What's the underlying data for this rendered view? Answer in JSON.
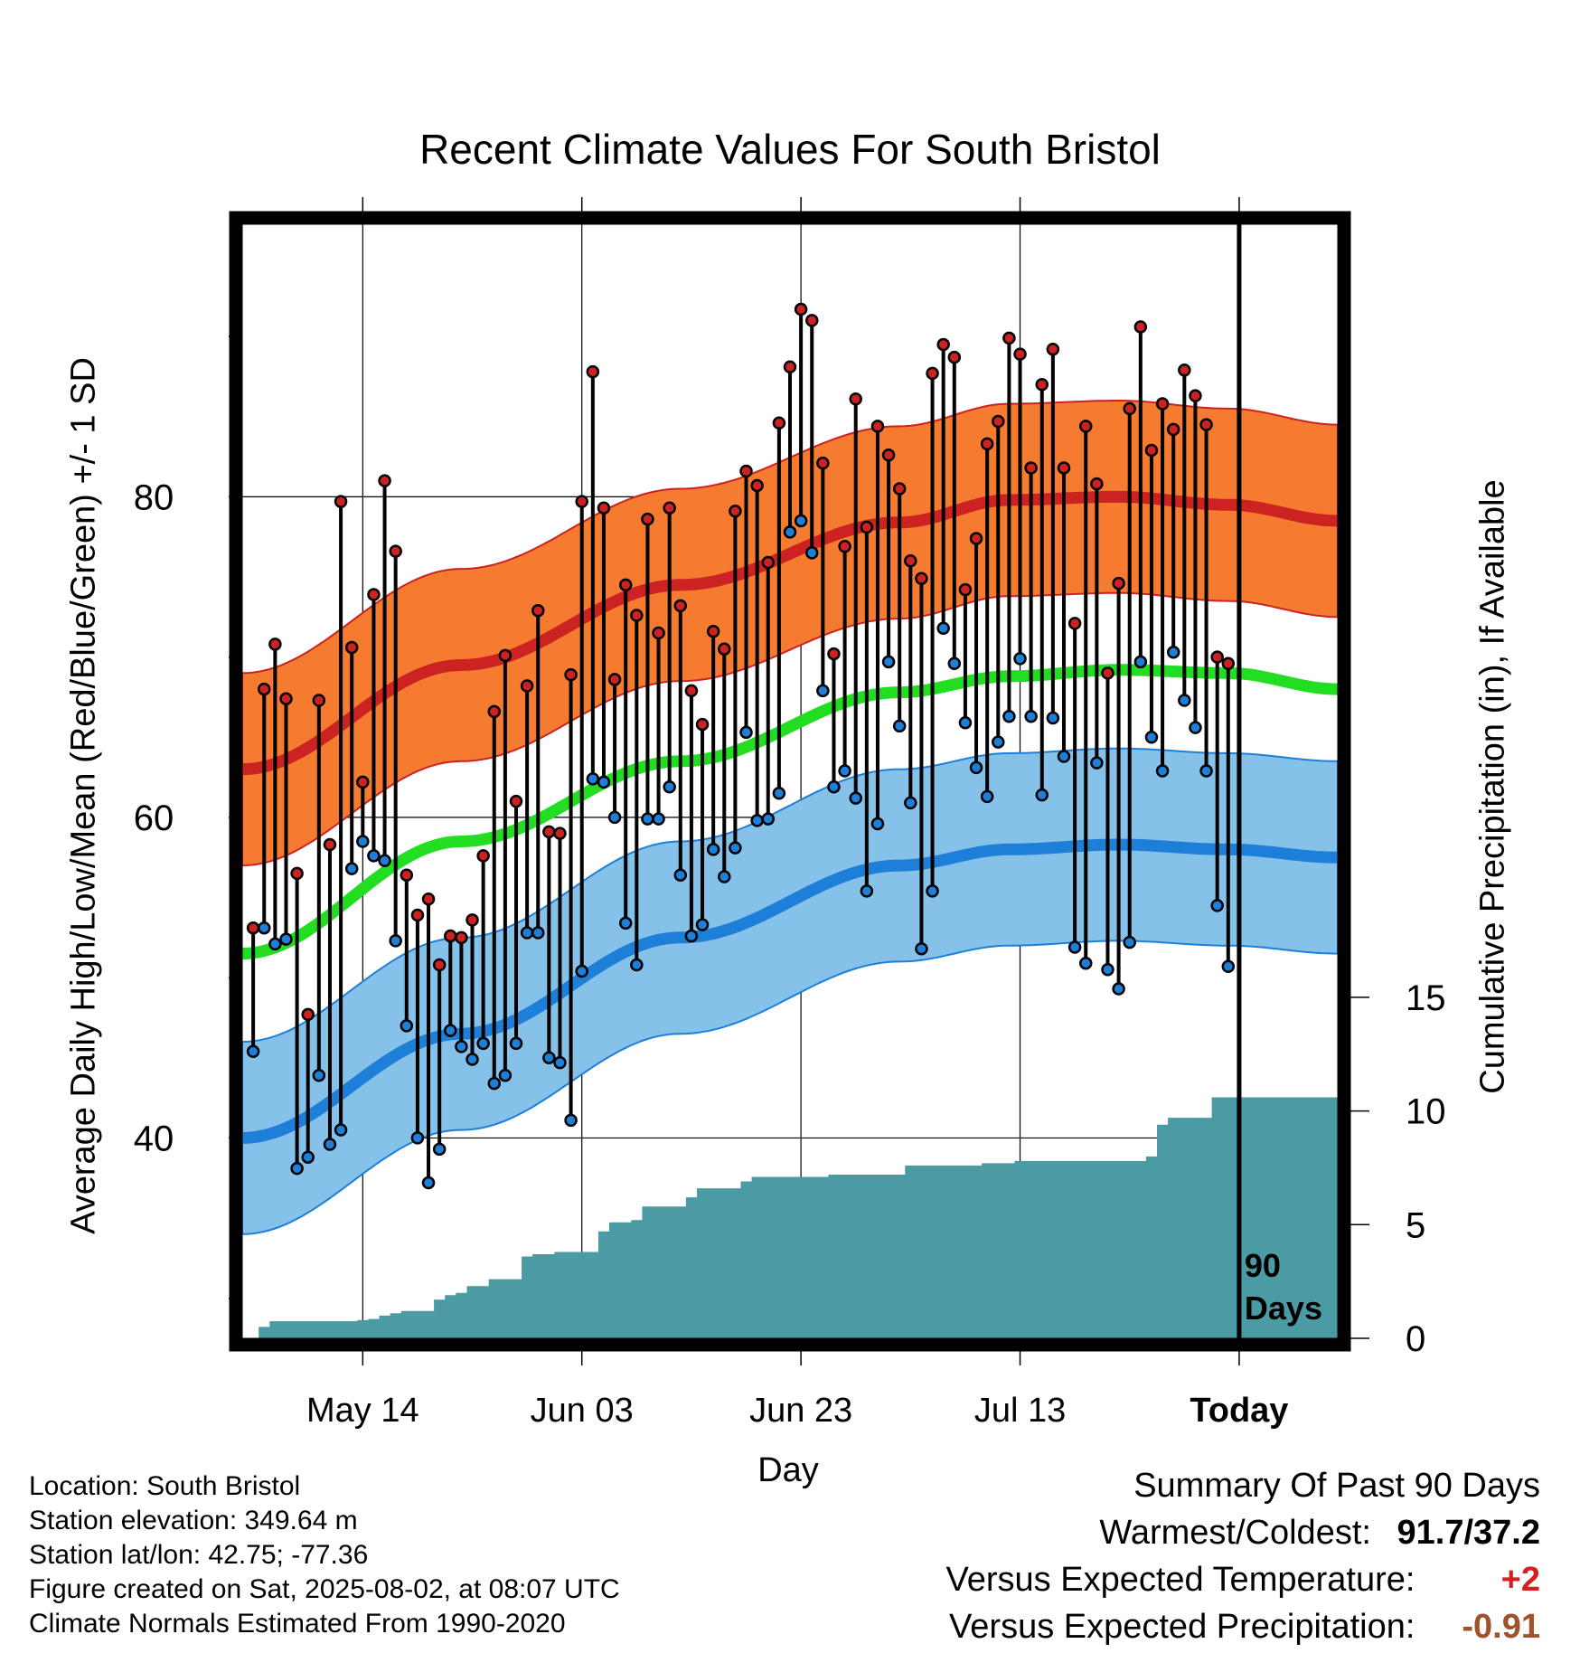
{
  "title": "Recent Climate Values For South Bristol",
  "footer": {
    "location": "Location: South Bristol",
    "elevation": "Station elevation: 349.64 m",
    "latlon": "Station lat/lon: 42.75; -77.36",
    "created": "Figure created on Sat, 2025-08-02, at 08:07 UTC",
    "normals": "Climate Normals Estimated From 1990-2020"
  },
  "summary": {
    "heading": "Summary Of Past 90 Days",
    "warmest_coldest_label": "Warmest/Coldest:",
    "warmest_coldest_value": "91.7/37.2",
    "temp_label": "Versus Expected Temperature:",
    "temp_value": "+2",
    "precip_label": "Versus Expected Precipitation:",
    "precip_value": "-0.91"
  },
  "colors": {
    "high": "#cc2222",
    "low": "#1e7fd8",
    "high_band": "#f47b30",
    "low_band": "#85c1e8",
    "mean": "#22dd22",
    "precip": "#4a9ba3",
    "temp_anomaly": "#d42020",
    "precip_anomaly": "#a0522d"
  },
  "chart_data": {
    "type": "line",
    "xlabel": "Day",
    "ylabel": "Average Daily High/Low/Mean (Red/Blue/Green) +/- 1 SD",
    "y2label": "Cumulative Precipitation (in), If Available",
    "x_ticks": [
      "May 14",
      "Jun 03",
      "Jun 23",
      "Jul 13",
      "Today"
    ],
    "x_tick_days": [
      14,
      34,
      54,
      74,
      94
    ],
    "x_range_days": [
      3,
      103
    ],
    "today_day": 94,
    "today_annotation": "90 Days",
    "y_ticks": [
      40,
      60,
      80
    ],
    "ylim": [
      27.5,
      97
    ],
    "y2_ticks": [
      0,
      5,
      10,
      15
    ],
    "y2lim": [
      0,
      49
    ],
    "grid": true,
    "normal_high": {
      "days": [
        3,
        23,
        43,
        63,
        73,
        83,
        93,
        103
      ],
      "values": [
        63.0,
        69.5,
        74.5,
        78.4,
        79.8,
        80.0,
        79.5,
        78.5
      ],
      "sd": 6
    },
    "normal_low": {
      "days": [
        3,
        23,
        43,
        63,
        73,
        83,
        93,
        103
      ],
      "values": [
        40.0,
        46.5,
        52.5,
        57.0,
        58.0,
        58.3,
        58.0,
        57.5
      ],
      "sd": 6
    },
    "normal_mean": {
      "days": [
        3,
        23,
        43,
        63,
        73,
        83,
        93,
        103
      ],
      "values": [
        51.5,
        58.5,
        63.5,
        67.8,
        68.8,
        69.2,
        69.0,
        68.0
      ]
    },
    "daily": {
      "days": [
        4,
        5,
        6,
        7,
        8,
        9,
        10,
        11,
        12,
        13,
        14,
        15,
        16,
        17,
        18,
        19,
        20,
        21,
        22,
        23,
        24,
        25,
        26,
        27,
        28,
        29,
        30,
        31,
        32,
        33,
        34,
        35,
        36,
        37,
        38,
        39,
        40,
        41,
        42,
        43,
        44,
        45,
        46,
        47,
        48,
        49,
        50,
        51,
        52,
        53,
        54,
        55,
        56,
        57,
        58,
        59,
        60,
        61,
        62,
        63,
        64,
        65,
        66,
        67,
        68,
        69,
        70,
        71,
        72,
        73,
        74,
        75,
        76,
        77,
        78,
        79,
        80,
        81,
        82,
        83,
        84,
        85,
        86,
        87,
        88,
        89,
        90,
        91,
        92,
        93
      ],
      "highs": [
        53.1,
        68.0,
        70.8,
        67.4,
        56.5,
        47.7,
        67.3,
        58.3,
        79.7,
        70.6,
        62.2,
        73.9,
        81.0,
        76.6,
        56.4,
        53.9,
        54.9,
        50.8,
        52.6,
        52.5,
        53.6,
        57.6,
        66.6,
        70.1,
        61.0,
        68.2,
        72.9,
        59.1,
        59.0,
        68.9,
        79.7,
        87.8,
        79.3,
        68.6,
        74.5,
        72.6,
        78.6,
        71.5,
        79.3,
        73.2,
        67.9,
        65.8,
        71.6,
        70.5,
        79.1,
        81.6,
        80.7,
        75.9,
        84.6,
        88.1,
        91.7,
        91.0,
        82.1,
        70.2,
        76.9,
        86.1,
        78.1,
        84.4,
        82.6,
        80.5,
        76.0,
        74.9,
        87.7,
        89.5,
        88.7,
        74.2,
        77.4,
        83.3,
        84.7,
        89.9,
        88.9,
        81.8,
        87.0,
        89.2,
        81.8,
        72.1,
        84.4,
        80.8,
        69.0,
        74.6,
        85.5,
        90.6,
        82.9,
        85.8,
        84.2,
        87.9,
        86.3,
        84.5,
        70.0,
        69.6
      ],
      "lows": [
        45.4,
        53.1,
        52.1,
        52.4,
        38.1,
        38.8,
        43.9,
        39.6,
        40.5,
        56.8,
        58.5,
        57.6,
        57.3,
        52.3,
        47.0,
        40.0,
        37.2,
        39.3,
        46.7,
        45.7,
        44.9,
        45.9,
        43.4,
        43.9,
        45.9,
        52.8,
        52.8,
        45.0,
        44.7,
        41.1,
        50.4,
        62.4,
        62.2,
        60.0,
        53.4,
        50.8,
        59.9,
        59.9,
        61.9,
        56.4,
        52.6,
        53.3,
        58.0,
        56.3,
        58.1,
        65.3,
        59.8,
        59.9,
        61.5,
        77.8,
        78.5,
        76.5,
        67.9,
        61.9,
        62.9,
        61.2,
        55.4,
        59.6,
        69.7,
        65.7,
        60.9,
        51.8,
        55.4,
        71.8,
        69.6,
        65.9,
        63.1,
        61.3,
        64.7,
        66.3,
        69.9,
        66.3,
        61.4,
        66.2,
        63.8,
        51.9,
        50.9,
        63.4,
        50.5,
        49.3,
        52.2,
        69.7,
        65.0,
        62.9,
        70.3,
        67.3,
        65.6,
        62.9,
        54.5,
        50.7
      ]
    },
    "precip": {
      "days": [
        4,
        5,
        6,
        7,
        8,
        9,
        10,
        11,
        12,
        13,
        14,
        15,
        16,
        17,
        18,
        19,
        20,
        21,
        22,
        23,
        24,
        25,
        26,
        27,
        28,
        29,
        30,
        31,
        32,
        33,
        34,
        35,
        36,
        37,
        38,
        39,
        40,
        41,
        42,
        43,
        44,
        45,
        46,
        47,
        48,
        49,
        50,
        51,
        52,
        53,
        54,
        55,
        56,
        57,
        58,
        59,
        60,
        61,
        62,
        63,
        64,
        65,
        66,
        67,
        68,
        69,
        70,
        71,
        72,
        73,
        74,
        75,
        76,
        77,
        78,
        79,
        80,
        81,
        82,
        83,
        84,
        85,
        86,
        87,
        88,
        89,
        90,
        91,
        92,
        93,
        94,
        95,
        96,
        97,
        98,
        99,
        100,
        101,
        102,
        103
      ],
      "values": [
        0.0,
        0.5,
        0.75,
        0.75,
        0.75,
        0.75,
        0.75,
        0.75,
        0.75,
        0.75,
        0.8,
        0.85,
        1.0,
        1.1,
        1.2,
        1.2,
        1.2,
        1.7,
        1.9,
        2.0,
        2.3,
        2.3,
        2.6,
        2.6,
        2.6,
        3.6,
        3.7,
        3.7,
        3.8,
        3.8,
        3.8,
        3.8,
        4.7,
        5.1,
        5.1,
        5.2,
        5.8,
        5.8,
        5.8,
        5.8,
        6.2,
        6.6,
        6.6,
        6.6,
        6.6,
        6.9,
        7.1,
        7.1,
        7.1,
        7.1,
        7.1,
        7.1,
        7.1,
        7.2,
        7.2,
        7.2,
        7.2,
        7.2,
        7.2,
        7.2,
        7.6,
        7.6,
        7.6,
        7.6,
        7.6,
        7.6,
        7.6,
        7.7,
        7.7,
        7.7,
        7.8,
        7.8,
        7.8,
        7.8,
        7.8,
        7.8,
        7.8,
        7.8,
        7.8,
        7.8,
        7.8,
        7.8,
        8.0,
        9.4,
        9.7,
        9.7,
        9.7,
        9.7,
        10.6,
        10.6,
        10.6,
        10.6,
        10.6,
        10.6,
        10.6,
        10.6,
        10.6,
        10.6,
        10.6,
        10.6
      ]
    }
  }
}
